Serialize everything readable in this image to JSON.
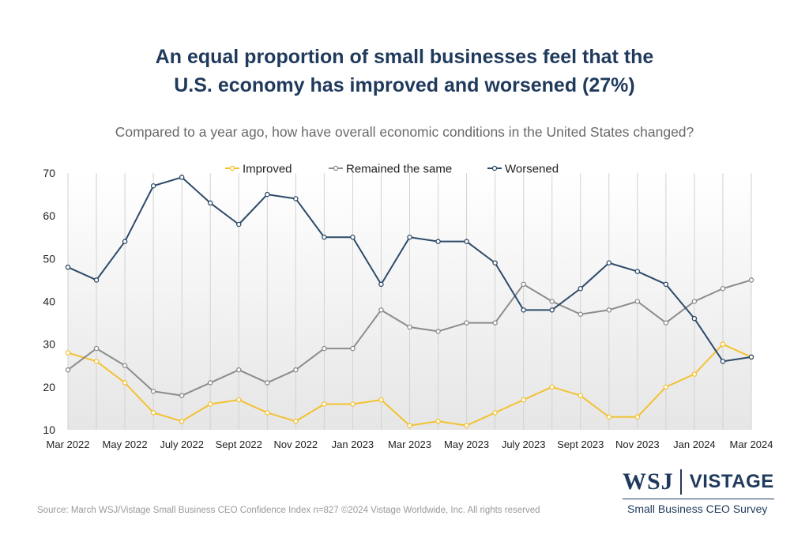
{
  "title_line1": "An equal proportion of small businesses feel that the",
  "title_line2": "U.S. economy has improved and worsened (27%)",
  "subtitle": "Compared to a year ago, how have overall economic conditions in the United States changed?",
  "source": "Source: March WSJ/Vistage Small Business CEO Confidence Index n=827 ©2024 Vistage Worldwide, Inc. All rights reserved",
  "brand": {
    "wsj": "WSJ",
    "vistage": "VISTAGE",
    "tagline": "Small Business CEO Survey"
  },
  "colors": {
    "improved": "#f2c232",
    "same": "#8c8c8c",
    "worsened": "#2d4a68"
  },
  "chart_data": {
    "type": "line",
    "title": "An equal proportion of small businesses feel that the U.S. economy has improved and worsened (27%)",
    "subtitle": "Compared to a year ago, how have overall economic conditions in the United States changed?",
    "xlabel": "",
    "ylabel": "",
    "ylim": [
      10,
      70
    ],
    "yticks": [
      10,
      20,
      30,
      40,
      50,
      60,
      70
    ],
    "grid": "vertical",
    "legend_position": "top",
    "x_tick_labels": [
      "Mar 2022",
      "May 2022",
      "July 2022",
      "Sept 2022",
      "Nov 2022",
      "Jan 2023",
      "Mar 2023",
      "May 2023",
      "July 2023",
      "Sept 2023",
      "Nov 2023",
      "Jan 2024",
      "Mar 2024"
    ],
    "x_tick_every": 2,
    "num_points": 25,
    "series": [
      {
        "name": "Improved",
        "color_key": "improved",
        "values": [
          28,
          26,
          21,
          14,
          12,
          16,
          17,
          14,
          12,
          16,
          16,
          17,
          11,
          12,
          11,
          14,
          17,
          20,
          18,
          13,
          13,
          20,
          23,
          30,
          27
        ]
      },
      {
        "name": "Remained the same",
        "color_key": "same",
        "values": [
          24,
          29,
          25,
          19,
          18,
          21,
          24,
          21,
          24,
          29,
          29,
          38,
          34,
          33,
          35,
          35,
          44,
          40,
          37,
          38,
          40,
          35,
          40,
          43,
          45
        ]
      },
      {
        "name": "Worsened",
        "color_key": "worsened",
        "values": [
          48,
          45,
          54,
          67,
          69,
          63,
          58,
          65,
          64,
          55,
          55,
          44,
          55,
          54,
          54,
          49,
          38,
          38,
          43,
          49,
          47,
          44,
          36,
          26,
          27
        ]
      }
    ]
  }
}
